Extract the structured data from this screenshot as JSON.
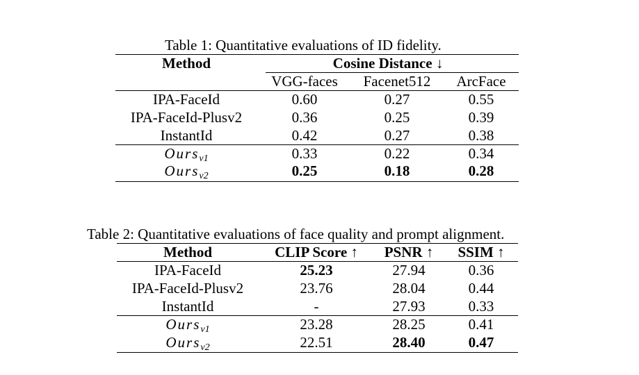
{
  "table1": {
    "caption": "Table 1: Quantitative evaluations of ID fidelity.",
    "header_method": "Method",
    "header_group": "Cosine Distance ↓",
    "subheaders": [
      "VGG-faces",
      "Facenet512",
      "ArcFace"
    ],
    "rows": [
      {
        "method": "IPA-FaceId",
        "values": [
          "0.60",
          "0.27",
          "0.55"
        ]
      },
      {
        "method": "IPA-FaceId-Plusv2",
        "values": [
          "0.36",
          "0.25",
          "0.39"
        ]
      },
      {
        "method": "InstantId",
        "values": [
          "0.42",
          "0.27",
          "0.38"
        ]
      }
    ],
    "ours": [
      {
        "base": "Ours",
        "sub": "v1",
        "values": [
          "0.33",
          "0.22",
          "0.34"
        ]
      },
      {
        "base": "Ours",
        "sub": "v2",
        "values": [
          "0.25",
          "0.18",
          "0.28"
        ]
      }
    ]
  },
  "table2": {
    "caption": "Table 2: Quantitative evaluations of face quality and prompt alignment.",
    "headers": [
      "Method",
      "CLIP Score ↑",
      "PSNR ↑",
      "SSIM ↑"
    ],
    "rows": [
      {
        "method": "IPA-FaceId",
        "values": [
          "25.23",
          "27.94",
          "0.36"
        ]
      },
      {
        "method": "IPA-FaceId-Plusv2",
        "values": [
          "23.76",
          "28.04",
          "0.44"
        ]
      },
      {
        "method": "InstantId",
        "values": [
          "-",
          "27.93",
          "0.33"
        ]
      }
    ],
    "ours": [
      {
        "base": "Ours",
        "sub": "v1",
        "values": [
          "23.28",
          "28.25",
          "0.41"
        ]
      },
      {
        "base": "Ours",
        "sub": "v2",
        "values": [
          "22.51",
          "28.40",
          "0.47"
        ]
      }
    ]
  }
}
